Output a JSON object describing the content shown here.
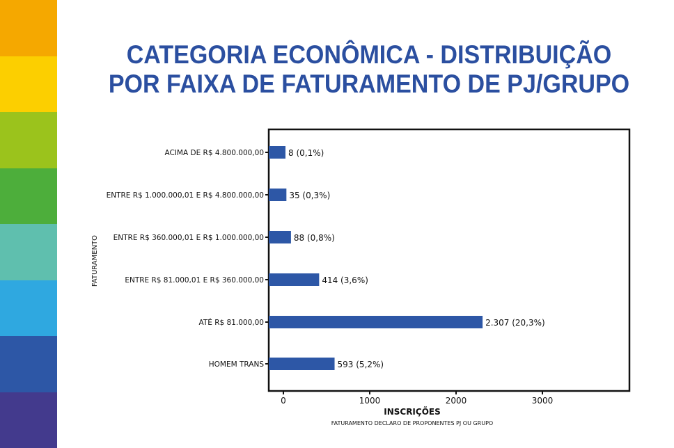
{
  "title_line1": "CATEGORIA ECONÔMICA - DISTRIBUIÇÃO",
  "title_line2": "POR FAIXA DE FATURAMENTO DE PJ/GRUPO",
  "stripe_colors": [
    "#F5A800",
    "#FCCF00",
    "#9BC31C",
    "#4DAE3B",
    "#5FBFAE",
    "#2FA8E0",
    "#2D57A6",
    "#433A8D"
  ],
  "chart_data": {
    "type": "bar",
    "orientation": "horizontal",
    "categories": [
      "ACIMA DE R$ 4.800.000,00",
      "ENTRE R$ 1.000.000,01 E R$ 4.800.000,00",
      "ENTRE R$ 360.000,01 E R$ 1.000.000,00",
      "ENTRE R$ 81.000,01 E R$ 360.000,00",
      "ATÉ R$ 81.000,00",
      "HOMEM TRANS"
    ],
    "values": [
      8,
      35,
      88,
      414,
      2307,
      593
    ],
    "data_labels": [
      "8 (0,1%)",
      "35 (0,3%)",
      "88 (0,8%)",
      "414 (3,6%)",
      "2.307 (20,3%)",
      "593 (5,2%)"
    ],
    "xlabel": "INSCRIÇÕES",
    "ylabel": "FATURAMENTO",
    "caption": "FATURAMENTO DECLARO DE PROPONENTES PJ OU GRUPO",
    "xticks": [
      0,
      1000,
      2000,
      3000
    ],
    "xlim": [
      -150,
      4000
    ],
    "bar_color": "#2D57A6",
    "grid": false
  }
}
